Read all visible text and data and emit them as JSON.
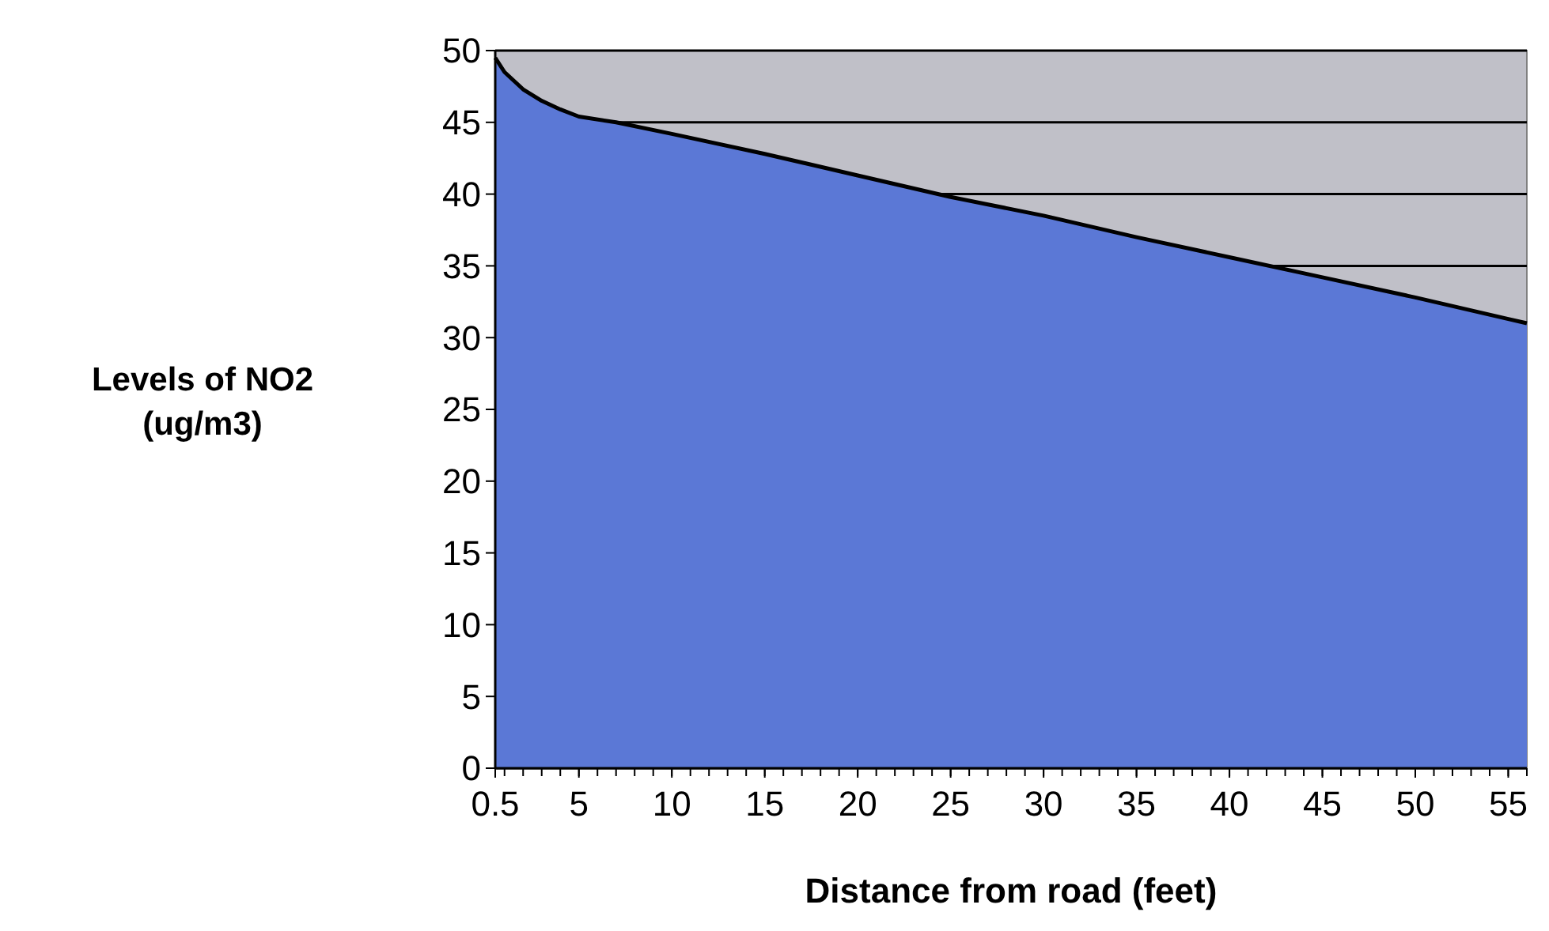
{
  "chart_data": {
    "type": "area",
    "xlabel": "Distance from road (feet)",
    "ylabel": "Levels of NO2 (ug/m3)",
    "x": [
      0.5,
      1,
      2,
      3,
      4,
      5,
      7,
      10,
      15,
      20,
      25,
      30,
      35,
      40,
      45,
      50,
      55,
      56
    ],
    "series": [
      {
        "color": "#5b78d6",
        "values": [
          49.5,
          48.5,
          47.3,
          46.5,
          45.9,
          45.4,
          45,
          44.2,
          42.8,
          41.3,
          39.8,
          38.5,
          37,
          35.6,
          34.2,
          32.8,
          31.3,
          31
        ]
      }
    ],
    "xlim": [
      0.5,
      56
    ],
    "xticks": [
      0.5,
      5,
      10,
      15,
      20,
      25,
      30,
      35,
      40,
      45,
      50,
      55
    ],
    "ylim": [
      0,
      50
    ],
    "yticks": [
      0,
      5,
      10,
      15,
      20,
      25,
      30,
      35,
      40,
      45,
      50
    ],
    "grid": "y"
  }
}
